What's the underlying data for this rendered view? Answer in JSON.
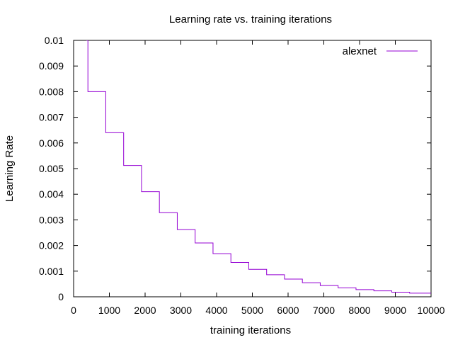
{
  "chart_data": {
    "type": "line",
    "title": "Learning rate vs. training iterations",
    "xlabel": "training iterations",
    "ylabel": "Learning Rate",
    "xlim": [
      0,
      10000
    ],
    "ylim": [
      0,
      0.01
    ],
    "x_ticks": [
      "0",
      "1000",
      "2000",
      "3000",
      "4000",
      "5000",
      "6000",
      "7000",
      "8000",
      "9000",
      "10000"
    ],
    "y_ticks": [
      "0",
      "0.001",
      "0.002",
      "0.003",
      "0.004",
      "0.005",
      "0.006",
      "0.007",
      "0.008",
      "0.009",
      "0.01"
    ],
    "grid": false,
    "legend": "top-right",
    "series": [
      {
        "name": "alexnet",
        "color": "#9400d3",
        "step": "post",
        "x": [
          0,
          500,
          1000,
          1500,
          2000,
          2500,
          3000,
          3500,
          4000,
          4500,
          5000,
          5500,
          6000,
          6500,
          7000,
          7500,
          8000,
          8500,
          9000,
          9500,
          10000
        ],
        "y": [
          0.01,
          0.008,
          0.0064,
          0.00512,
          0.0041,
          0.00328,
          0.00262,
          0.0021,
          0.00168,
          0.00134,
          0.00107,
          0.00086,
          0.00069,
          0.00055,
          0.00044,
          0.00035,
          0.00028,
          0.00023,
          0.00018,
          0.00014,
          0.00014
        ]
      }
    ]
  }
}
